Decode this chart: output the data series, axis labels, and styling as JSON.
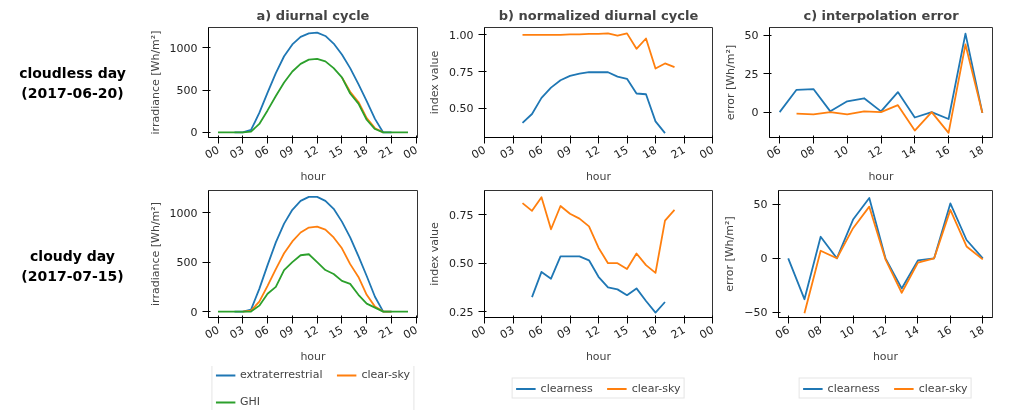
{
  "chart_data": [
    {
      "type": "line",
      "title": "a) diurnal cycle",
      "xlabel": "hour",
      "ylabel": "irradiance [Wh/m²]",
      "annotations": [
        "cloudless day\n(2017-06-20)"
      ],
      "x": [
        0,
        1,
        2,
        3,
        4,
        5,
        6,
        7,
        8,
        9,
        10,
        11,
        12,
        13,
        14,
        15,
        16,
        17,
        18,
        19,
        20,
        21,
        22,
        23
      ],
      "xlim": [
        -1.15,
        24.15
      ],
      "xticks": [
        {
          "value": 0,
          "label": "00"
        },
        {
          "value": 3,
          "label": "03"
        },
        {
          "value": 6,
          "label": "06"
        },
        {
          "value": 9,
          "label": "09"
        },
        12,
        15,
        18,
        21,
        {
          "value": 24,
          "label": "00"
        }
      ],
      "ylim": [
        -60,
        1240
      ],
      "yticks": [
        0,
        500,
        1000
      ],
      "series": [
        {
          "color": "#1f77b4",
          "values": [
            null,
            null,
            0,
            0,
            30,
            230,
            470,
            700,
            900,
            1040,
            1130,
            1170,
            1180,
            1140,
            1050,
            920,
            760,
            570,
            370,
            160,
            0,
            0,
            null,
            null
          ]
        },
        {
          "color": "#ff7f0e",
          "values": [
            null,
            null,
            null,
            null,
            null,
            null,
            null,
            null,
            null,
            null,
            null,
            null,
            null,
            null,
            null,
            650,
            480,
            360,
            170,
            50,
            0,
            null,
            null,
            null
          ]
        },
        {
          "color": "#2ca02c",
          "values": [
            0,
            0,
            0,
            0,
            10,
            100,
            260,
            430,
            590,
            720,
            810,
            860,
            870,
            840,
            760,
            650,
            460,
            340,
            150,
            40,
            0,
            0,
            0,
            0
          ]
        }
      ]
    },
    {
      "type": "line",
      "title": "b) normalized diurnal cycle",
      "xlabel": "hour",
      "ylabel": "index value",
      "xlim": [
        0,
        24
      ],
      "xticks": [
        {
          "value": 0,
          "label": "00"
        },
        {
          "value": 3,
          "label": "03"
        },
        {
          "value": 6,
          "label": "06"
        },
        {
          "value": 9,
          "label": "09"
        },
        12,
        15,
        18,
        21,
        {
          "value": 24,
          "label": "00"
        }
      ],
      "ylim": [
        0.3,
        1.05
      ],
      "yticks": [
        {
          "value": 0.5,
          "label": "0.50"
        },
        0.75,
        {
          "value": 1,
          "label": "1.00"
        }
      ],
      "series": [
        {
          "color": "#1f77b4",
          "x": [
            4,
            5,
            6,
            7,
            8,
            9,
            10,
            11,
            12,
            13,
            14,
            15,
            16,
            17,
            18,
            19
          ],
          "values": [
            0.4,
            0.46,
            0.57,
            0.64,
            0.69,
            0.72,
            0.735,
            0.745,
            0.745,
            0.745,
            0.715,
            0.7,
            0.6,
            0.595,
            0.41,
            0.33
          ]
        },
        {
          "color": "#ff7f0e",
          "x": [
            4,
            5,
            6,
            7,
            8,
            9,
            10,
            11,
            12,
            13,
            14,
            15,
            16,
            17,
            18,
            19,
            20
          ],
          "values": [
            1.0,
            1.0,
            1.0,
            1.0,
            1.0,
            1.003,
            1.003,
            1.006,
            1.006,
            1.01,
            0.995,
            1.01,
            0.905,
            0.975,
            0.77,
            0.805,
            0.78
          ]
        }
      ]
    },
    {
      "type": "line",
      "title": "c) interpolation error",
      "xlabel": "hour",
      "ylabel": "error [Wh/m²]",
      "xlim": [
        5.4,
        18.6
      ],
      "xticks": [
        {
          "value": 6,
          "label": "06"
        },
        {
          "value": 8,
          "label": "08"
        },
        10,
        12,
        14,
        16,
        18
      ],
      "ylim": [
        -16.5,
        55
      ],
      "yticks": [
        0,
        25,
        50
      ],
      "series": [
        {
          "color": "#1f77b4",
          "x": [
            6,
            7,
            8,
            9,
            10,
            11,
            12,
            13,
            14,
            15,
            16,
            17,
            18
          ],
          "values": [
            0,
            14.5,
            15,
            0.5,
            7,
            9,
            0.5,
            13,
            -3.5,
            0,
            -4.5,
            51,
            -0.5
          ]
        },
        {
          "color": "#ff7f0e",
          "x": [
            7,
            8,
            9,
            10,
            11,
            12,
            13,
            14,
            15,
            16,
            17,
            18
          ],
          "values": [
            -1,
            -1.5,
            0,
            -1.5,
            0.5,
            0,
            4.5,
            -12,
            0,
            -13.5,
            44,
            -0.5
          ]
        }
      ]
    },
    {
      "type": "line",
      "xlabel": "hour",
      "ylabel": "irradiance [Wh/m²]",
      "annotations": [
        "cloudy day\n(2017-07-15)"
      ],
      "legend": "bottom",
      "x": [
        0,
        1,
        2,
        3,
        4,
        5,
        6,
        7,
        8,
        9,
        10,
        11,
        12,
        13,
        14,
        15,
        16,
        17,
        18,
        19,
        20,
        21,
        22,
        23
      ],
      "xlim": [
        -1.15,
        24.15
      ],
      "xticks": [
        {
          "value": 0,
          "label": "00"
        },
        {
          "value": 3,
          "label": "03"
        },
        {
          "value": 6,
          "label": "06"
        },
        {
          "value": 9,
          "label": "09"
        },
        12,
        15,
        18,
        21,
        {
          "value": 24,
          "label": "00"
        }
      ],
      "ylim": [
        -60,
        1225
      ],
      "yticks": [
        0,
        500,
        1000
      ],
      "series": [
        {
          "name": "extraterrestrial",
          "color": "#1f77b4",
          "values": [
            null,
            null,
            0,
            0,
            20,
            230,
            470,
            700,
            890,
            1030,
            1120,
            1160,
            1160,
            1120,
            1040,
            910,
            750,
            560,
            360,
            150,
            0,
            0,
            null,
            null
          ]
        },
        {
          "name": "clear-sky",
          "color": "#ff7f0e",
          "values": [
            null,
            null,
            null,
            0,
            10,
            100,
            260,
            430,
            590,
            710,
            800,
            850,
            860,
            830,
            750,
            640,
            480,
            350,
            170,
            50,
            0,
            0,
            null,
            null
          ]
        },
        {
          "name": "GHI",
          "color": "#2ca02c",
          "values": [
            0,
            0,
            0,
            0,
            0,
            60,
            180,
            250,
            420,
            500,
            570,
            580,
            500,
            420,
            380,
            310,
            280,
            170,
            80,
            40,
            0,
            0,
            0,
            0
          ]
        }
      ]
    },
    {
      "type": "line",
      "xlabel": "hour",
      "ylabel": "index value",
      "legend": "bottom",
      "xlim": [
        0,
        24
      ],
      "xticks": [
        {
          "value": 0,
          "label": "00"
        },
        {
          "value": 3,
          "label": "03"
        },
        {
          "value": 6,
          "label": "06"
        },
        {
          "value": 9,
          "label": "09"
        },
        12,
        15,
        18,
        21,
        {
          "value": 24,
          "label": "00"
        }
      ],
      "ylim": [
        0.22,
        0.875
      ],
      "yticks": [
        0.25,
        {
          "value": 0.5,
          "label": "0.50"
        },
        0.75
      ],
      "series": [
        {
          "name": "clearness",
          "color": "#1f77b4",
          "x": [
            5,
            6,
            7,
            8,
            9,
            10,
            11,
            12,
            13,
            14,
            15,
            16,
            17,
            18,
            19
          ],
          "values": [
            0.325,
            0.455,
            0.42,
            0.535,
            0.535,
            0.535,
            0.515,
            0.43,
            0.375,
            0.365,
            0.335,
            0.37,
            0.305,
            0.245,
            0.3
          ]
        },
        {
          "name": "clear-sky",
          "color": "#ff7f0e",
          "x": [
            4,
            5,
            6,
            7,
            8,
            9,
            10,
            11,
            12,
            13,
            14,
            15,
            16,
            17,
            18,
            19,
            20
          ],
          "values": [
            0.81,
            0.77,
            0.84,
            0.675,
            0.795,
            0.755,
            0.73,
            0.69,
            0.58,
            0.5,
            0.5,
            0.47,
            0.55,
            0.49,
            0.45,
            0.72,
            0.775
          ]
        }
      ]
    },
    {
      "type": "line",
      "xlabel": "hour",
      "ylabel": "error [Wh/m²]",
      "legend": "bottom",
      "xlim": [
        5.4,
        18.6
      ],
      "xticks": [
        {
          "value": 6,
          "label": "06"
        },
        {
          "value": 8,
          "label": "08"
        },
        10,
        12,
        14,
        16,
        18
      ],
      "ylim": [
        -55,
        63
      ],
      "yticks": [
        {
          "value": -50,
          "label": "−50"
        },
        0,
        50
      ],
      "series": [
        {
          "name": "clearness",
          "color": "#1f77b4",
          "x": [
            6,
            7,
            8,
            9,
            10,
            11,
            12,
            13,
            14,
            15,
            16,
            17,
            18
          ],
          "values": [
            0,
            -38,
            20,
            0,
            36,
            56,
            0,
            -28,
            -2,
            0,
            51,
            17,
            0
          ]
        },
        {
          "name": "clear-sky",
          "color": "#ff7f0e",
          "x": [
            7,
            8,
            9,
            10,
            11,
            12,
            13,
            14,
            15,
            16,
            17,
            18
          ],
          "values": [
            -51,
            7,
            0,
            28,
            48,
            -1,
            -32,
            -4,
            0,
            45,
            11,
            -1
          ]
        }
      ]
    }
  ]
}
